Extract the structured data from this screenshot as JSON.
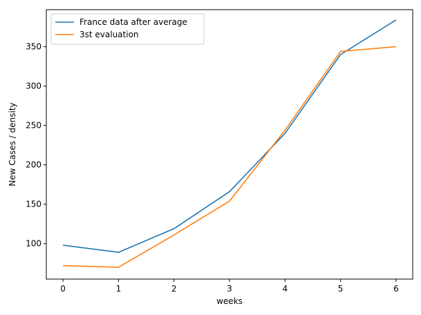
{
  "chart_data": {
    "type": "line",
    "title": "",
    "xlabel": "weeks",
    "ylabel": "New Cases / density",
    "xlim": [
      -0.3,
      6.3
    ],
    "ylim": [
      55,
      397
    ],
    "x": [
      0,
      1,
      2,
      3,
      4,
      5,
      6
    ],
    "xticks": [
      0,
      1,
      2,
      3,
      4,
      5,
      6
    ],
    "yticks": [
      100,
      150,
      200,
      250,
      300,
      350
    ],
    "grid": false,
    "legend_position": "top-left",
    "series": [
      {
        "name": "France data after average",
        "color": "#1f77b4",
        "values": [
          98,
          89,
          119,
          166,
          240,
          340,
          384
        ]
      },
      {
        "name": "3st evaluation",
        "color": "#ff7f0e",
        "values": [
          72,
          70,
          111,
          154,
          244,
          344,
          350
        ]
      }
    ]
  }
}
